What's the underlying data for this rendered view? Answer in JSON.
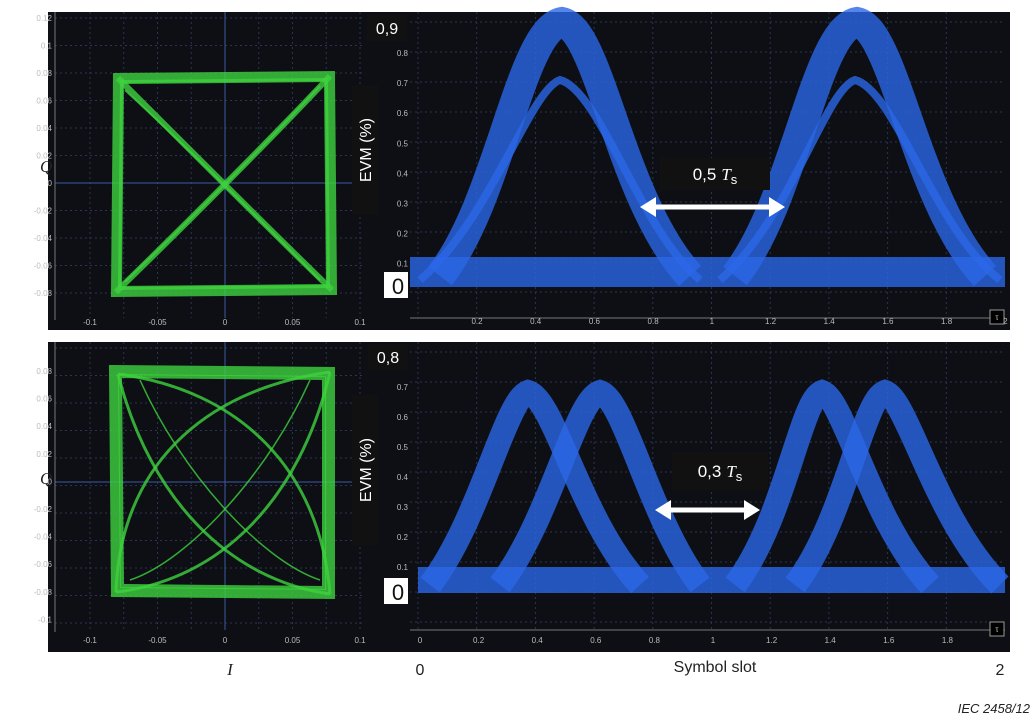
{
  "panels": [
    {
      "axis_label_q": "Q",
      "constellation": {
        "yticks": [
          "0.12",
          "0.1",
          "0.08",
          "0.06",
          "0.04",
          "0.02",
          "0",
          "-0.02",
          "-0.04",
          "-0.06",
          "-0.08"
        ],
        "xticks": [
          "-0.1",
          "-0.05",
          "0",
          "0.05",
          "0.1"
        ]
      },
      "eye": {
        "yticks": [
          "0.8",
          "0.7",
          "0.6",
          "0.5",
          "0.4",
          "0.3",
          "0.2",
          "0.1"
        ],
        "xticks": [
          "0.2",
          "0.4",
          "0.6",
          "0.8",
          "1",
          "1.2",
          "1.4",
          "1.6",
          "1.8",
          "2"
        ],
        "corner": "τ"
      },
      "evm_max": "0,9",
      "evm_label": "EVM   (%)",
      "evm_zero": "0",
      "spacing": {
        "value": "0,5",
        "symbol": "T",
        "subscript": "s"
      }
    },
    {
      "axis_label_q": "Q",
      "constellation": {
        "yticks": [
          "0.08",
          "0.06",
          "0.04",
          "0.02",
          "0",
          "-0.02",
          "-0.04",
          "-0.06",
          "-0.08",
          "-0.1"
        ],
        "xticks": [
          "-0.1",
          "-0.05",
          "0",
          "0.05",
          "0.1"
        ]
      },
      "eye": {
        "yticks": [
          "0.7",
          "0.6",
          "0.5",
          "0.4",
          "0.3",
          "0.2",
          "0.1"
        ],
        "xticks": [
          "0",
          "0.2",
          "0.4",
          "0.6",
          "0.8",
          "1",
          "1.2",
          "1.4",
          "1.6",
          "1.8"
        ],
        "corner": "τ"
      },
      "evm_max": "0,8",
      "evm_label": "EVM   (%)",
      "evm_zero": "0",
      "spacing": {
        "value": "0,3",
        "symbol": "T",
        "subscript": "s"
      }
    }
  ],
  "x_label_i": "I",
  "x_start": "0",
  "x_label": "Symbol slot",
  "x_end": "2",
  "source": "IEC  2458/12"
}
